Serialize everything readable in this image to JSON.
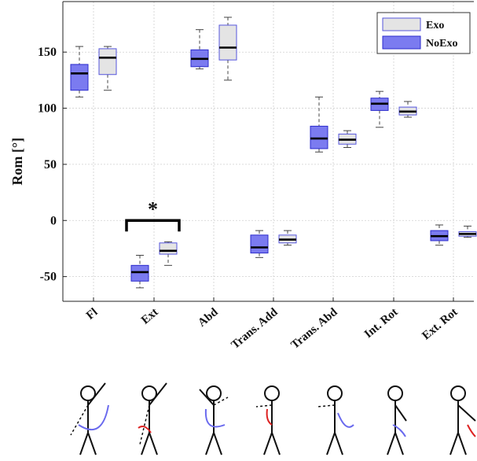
{
  "chart_data": {
    "type": "box",
    "ylabel": "Rom [°]",
    "ylim": [
      -72,
      195
    ],
    "yticks": [
      -50,
      0,
      50,
      100,
      150
    ],
    "categories": [
      "Fl",
      "Ext",
      "Abd",
      "Trans. Add",
      "Trans. Abd",
      "Int. Rot",
      "Ext. Rot"
    ],
    "legend": {
      "position": "top-right"
    },
    "grid": true,
    "series": [
      {
        "name": "NoExo",
        "color": "#7b7bf0",
        "edge": "#2b2bcc",
        "boxes": [
          {
            "whisker_low": 110,
            "q1": 116,
            "median": 131,
            "q3": 139,
            "whisker_high": 155
          },
          {
            "whisker_low": -60,
            "q1": -54,
            "median": -46,
            "q3": -40,
            "whisker_high": -31
          },
          {
            "whisker_low": 135,
            "q1": 137,
            "median": 144,
            "q3": 152,
            "whisker_high": 170
          },
          {
            "whisker_low": -33,
            "q1": -29,
            "median": -24,
            "q3": -13,
            "whisker_high": -9
          },
          {
            "whisker_low": 61,
            "q1": 64,
            "median": 73,
            "q3": 84,
            "whisker_high": 110
          },
          {
            "whisker_low": 83,
            "q1": 98,
            "median": 104,
            "q3": 109,
            "whisker_high": 115
          },
          {
            "whisker_low": -22,
            "q1": -18,
            "median": -14,
            "q3": -9,
            "whisker_high": -4
          }
        ]
      },
      {
        "name": "Exo",
        "color": "#e4e4e4",
        "edge": "#5555dd",
        "boxes": [
          {
            "whisker_low": 116,
            "q1": 130,
            "median": 145,
            "q3": 153,
            "whisker_high": 155
          },
          {
            "whisker_low": -40,
            "q1": -30,
            "median": -27,
            "q3": -20,
            "whisker_high": -19
          },
          {
            "whisker_low": 125,
            "q1": 143,
            "median": 154,
            "q3": 174,
            "whisker_high": 181
          },
          {
            "whisker_low": -22,
            "q1": -20,
            "median": -17,
            "q3": -13,
            "whisker_high": -9
          },
          {
            "whisker_low": 65,
            "q1": 68,
            "median": 72,
            "q3": 77,
            "whisker_high": 80
          },
          {
            "whisker_low": 92,
            "q1": 94,
            "median": 97,
            "q3": 101,
            "whisker_high": 106
          },
          {
            "whisker_low": -15,
            "q1": -14,
            "median": -12,
            "q3": -10,
            "whisker_high": -5
          }
        ]
      }
    ],
    "annotations": [
      {
        "text": "*",
        "category": "Ext",
        "bracket_y": 0
      }
    ]
  }
}
